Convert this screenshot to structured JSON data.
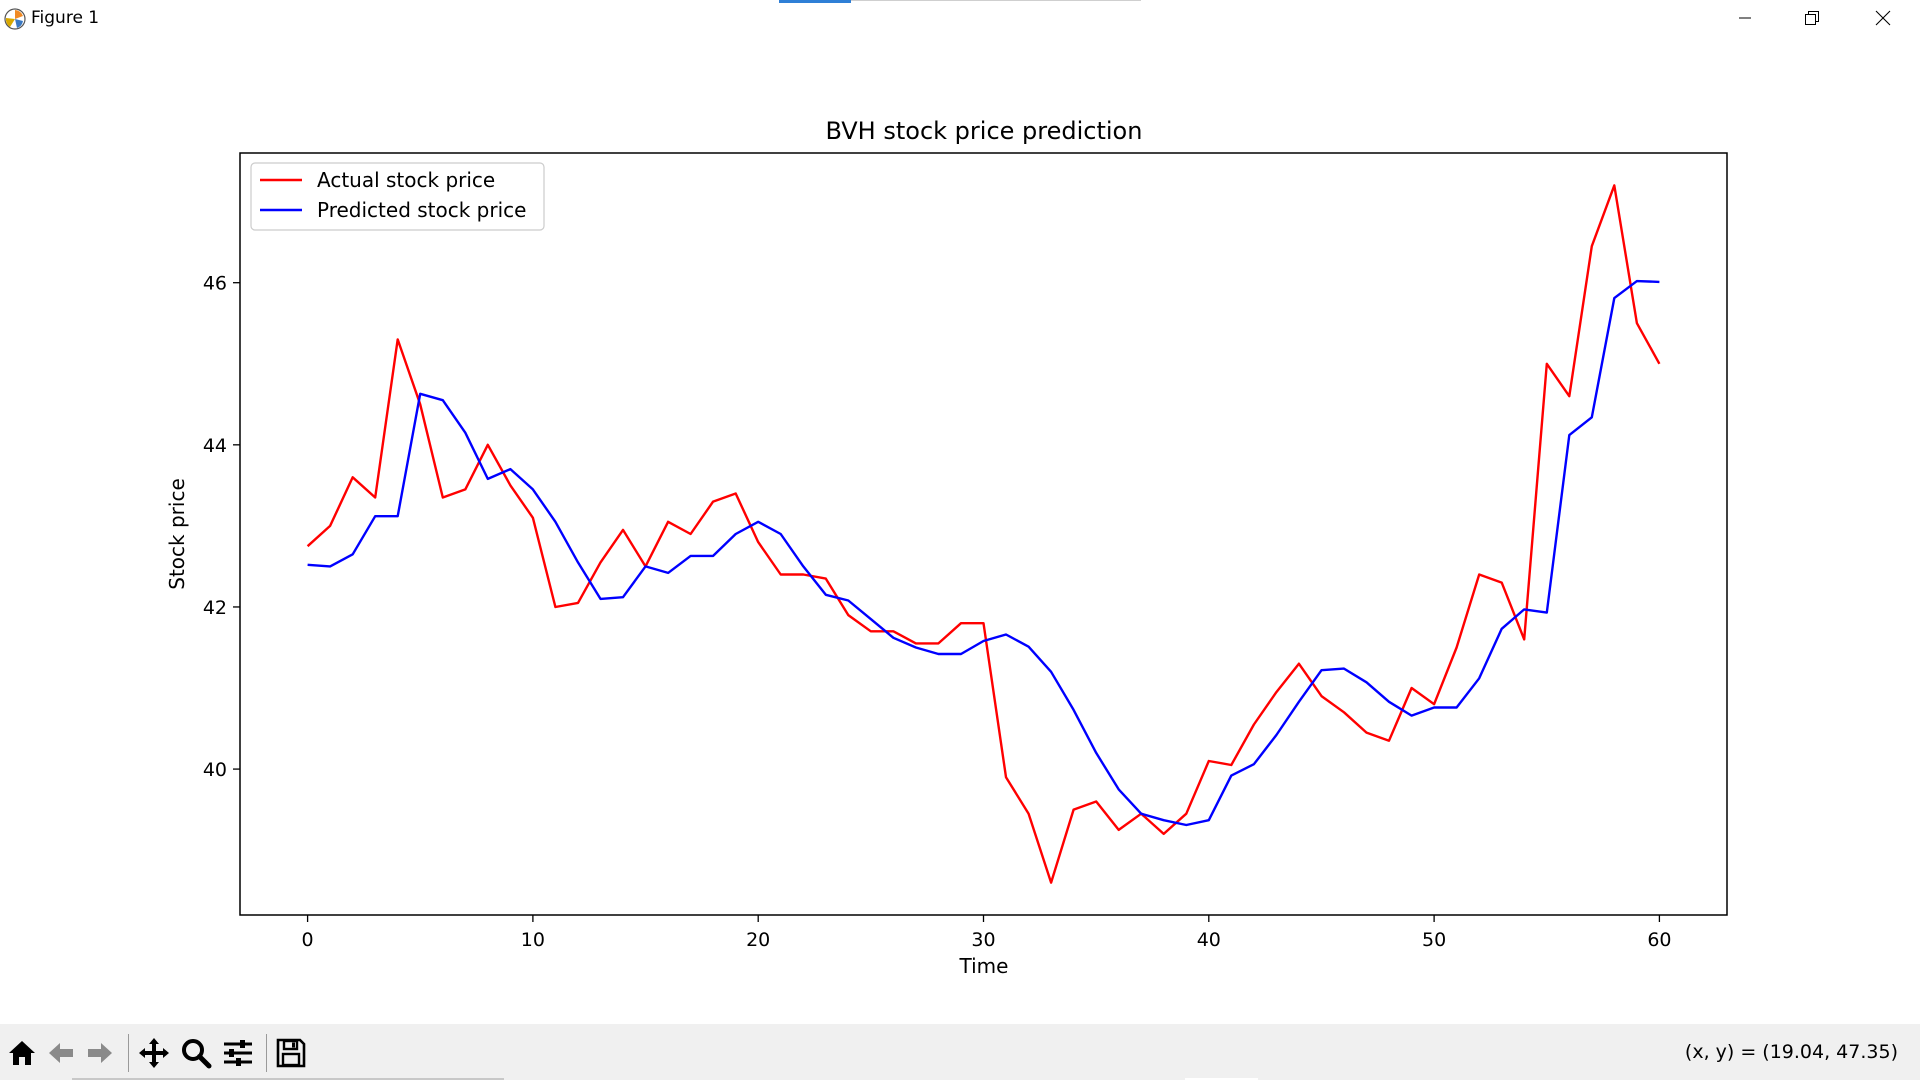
{
  "window": {
    "title": "Figure 1",
    "app_icon": "matplotlib-icon",
    "controls": [
      "minimize-icon",
      "maximize-icon",
      "close-icon"
    ]
  },
  "toolbar": {
    "tools": [
      "home-icon",
      "back-icon",
      "forward-icon",
      "pan-icon",
      "zoom-icon",
      "configure-subplots-icon",
      "save-icon"
    ],
    "coordinates": "(x, y) = (19.04, 47.35)"
  },
  "chart_data": {
    "type": "line",
    "title": "BVH stock price prediction",
    "xlabel": "Time",
    "ylabel": "Stock price",
    "xlim": [
      -3,
      63
    ],
    "ylim": [
      38.2,
      47.6
    ],
    "xticks": [
      0,
      10,
      20,
      30,
      40,
      50,
      60
    ],
    "yticks": [
      40,
      42,
      44,
      46
    ],
    "grid": false,
    "legend_position": "upper left",
    "x": [
      0,
      1,
      2,
      3,
      4,
      5,
      6,
      7,
      8,
      9,
      10,
      11,
      12,
      13,
      14,
      15,
      16,
      17,
      18,
      19,
      20,
      21,
      22,
      23,
      24,
      25,
      26,
      27,
      28,
      29,
      30,
      31,
      32,
      33,
      34,
      35,
      36,
      37,
      38,
      39,
      40,
      41,
      42,
      43,
      44,
      45,
      46,
      47,
      48,
      49,
      50,
      51,
      52,
      53,
      54,
      55,
      56,
      57,
      58,
      59,
      60
    ],
    "series": [
      {
        "name": "Actual stock price",
        "color": "#ff0000",
        "values": [
          42.75,
          43.0,
          43.6,
          43.35,
          45.3,
          44.5,
          43.35,
          43.45,
          44.0,
          43.5,
          43.1,
          42.0,
          42.05,
          42.55,
          42.95,
          42.5,
          43.05,
          42.9,
          43.3,
          43.4,
          42.8,
          42.4,
          42.4,
          42.35,
          41.9,
          41.7,
          41.7,
          41.55,
          41.55,
          41.8,
          41.8,
          39.9,
          39.45,
          38.6,
          39.5,
          39.6,
          39.25,
          39.45,
          39.2,
          39.45,
          40.1,
          40.05,
          40.55,
          40.95,
          41.3,
          40.9,
          40.7,
          40.45,
          40.35,
          41.0,
          40.8,
          41.5,
          42.4,
          42.3,
          41.6,
          45.0,
          44.6,
          46.45,
          47.2,
          45.5,
          45.0
        ]
      },
      {
        "name": "Predicted stock price",
        "color": "#0000ff",
        "values": [
          42.52,
          42.5,
          42.65,
          43.12,
          43.12,
          44.63,
          44.55,
          44.15,
          43.58,
          43.7,
          43.45,
          43.05,
          42.55,
          42.1,
          42.12,
          42.5,
          42.42,
          42.63,
          42.63,
          42.9,
          43.05,
          42.9,
          42.5,
          42.15,
          42.08,
          41.85,
          41.62,
          41.5,
          41.42,
          41.42,
          41.58,
          41.66,
          41.51,
          41.2,
          40.73,
          40.2,
          39.75,
          39.45,
          39.37,
          39.31,
          39.37,
          39.92,
          40.06,
          40.42,
          40.83,
          41.22,
          41.24,
          41.07,
          40.83,
          40.66,
          40.76,
          40.76,
          41.12,
          41.73,
          41.97,
          41.93,
          44.12,
          44.34,
          45.81,
          46.02,
          46.01
        ]
      }
    ]
  }
}
